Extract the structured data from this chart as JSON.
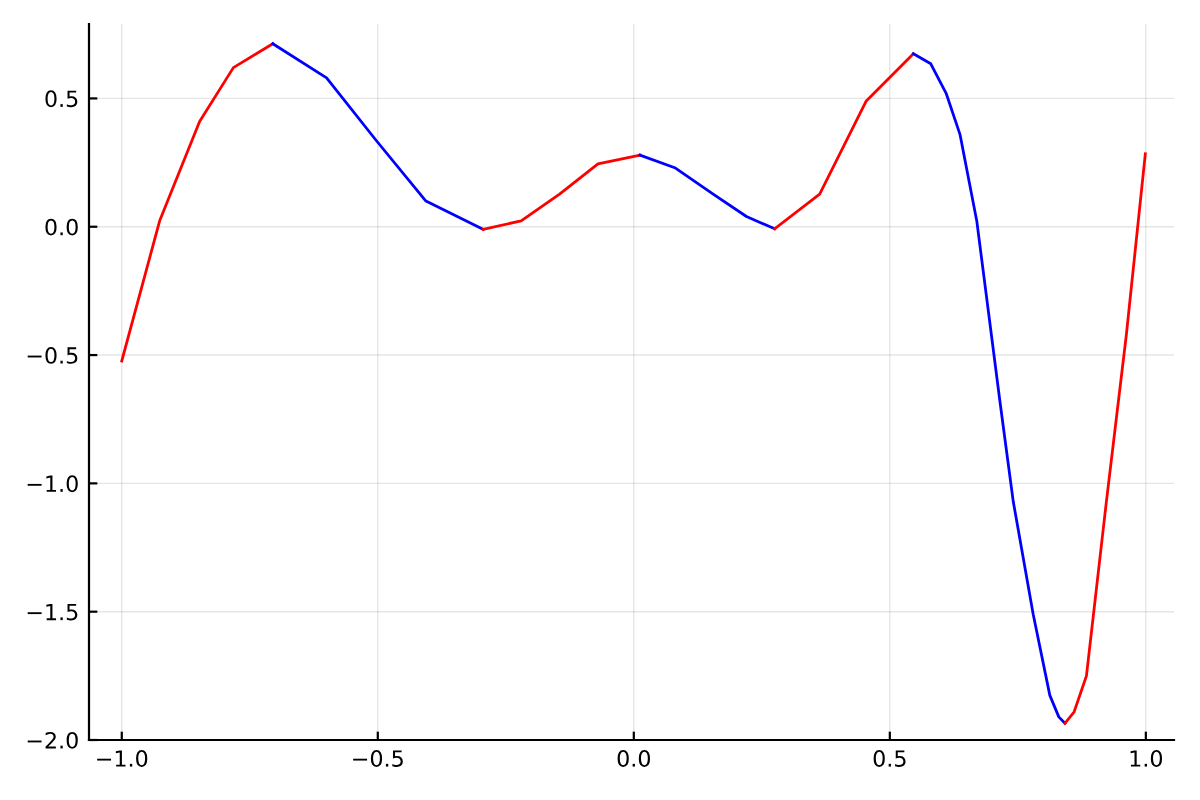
{
  "chart_data": {
    "type": "line",
    "xlim": [
      -1.064,
      1.055
    ],
    "ylim": [
      -2.0,
      0.79
    ],
    "xticks": [
      {
        "value": -1.0,
        "label": "−1.0"
      },
      {
        "value": -0.5,
        "label": "−0.5"
      },
      {
        "value": 0.0,
        "label": "0.0"
      },
      {
        "value": 0.5,
        "label": "0.5"
      },
      {
        "value": 1.0,
        "label": "1.0"
      }
    ],
    "yticks": [
      {
        "value": -2.0,
        "label": "−2.0"
      },
      {
        "value": -1.5,
        "label": "−1.5"
      },
      {
        "value": -1.0,
        "label": "−1.0"
      },
      {
        "value": -0.5,
        "label": "−0.5"
      },
      {
        "value": 0.0,
        "label": "0.0"
      },
      {
        "value": 0.5,
        "label": "0.5"
      }
    ],
    "grid": true,
    "legend": false,
    "marker": "none",
    "line_style": "solid",
    "series": [
      {
        "color": "#ff0000",
        "x": [
          -1.0,
          -0.926,
          -0.848,
          -0.782,
          -0.705
        ],
        "values": [
          -0.523,
          0.023,
          0.41,
          0.62,
          0.713
        ]
      },
      {
        "color": "#0000ff",
        "x": [
          -0.705,
          -0.6,
          -0.503,
          -0.406,
          -0.294
        ],
        "values": [
          0.713,
          0.58,
          0.336,
          0.1,
          -0.01
        ]
      },
      {
        "color": "#ff0000",
        "x": [
          -0.294,
          -0.22,
          -0.145,
          -0.07,
          0.012
        ],
        "values": [
          -0.01,
          0.023,
          0.127,
          0.245,
          0.279
        ]
      },
      {
        "color": "#0000ff",
        "x": [
          0.012,
          0.08,
          0.155,
          0.22,
          0.275
        ],
        "values": [
          0.279,
          0.23,
          0.127,
          0.04,
          -0.008
        ]
      },
      {
        "color": "#ff0000",
        "x": [
          0.275,
          0.363,
          0.454,
          0.546
        ],
        "values": [
          -0.008,
          0.127,
          0.49,
          0.674
        ]
      },
      {
        "color": "#0000ff",
        "x": [
          0.546,
          0.58,
          0.61,
          0.637,
          0.67,
          0.715,
          0.741,
          0.78,
          0.8125,
          0.83,
          0.842
        ],
        "values": [
          0.674,
          0.635,
          0.52,
          0.36,
          0.02,
          -0.68,
          -1.07,
          -1.51,
          -1.826,
          -1.91,
          -1.935
        ]
      },
      {
        "color": "#ff0000",
        "x": [
          0.842,
          0.86,
          0.884,
          0.923,
          0.962,
          0.999
        ],
        "values": [
          -1.935,
          -1.89,
          -1.75,
          -1.07,
          -0.42,
          0.284
        ]
      }
    ]
  }
}
